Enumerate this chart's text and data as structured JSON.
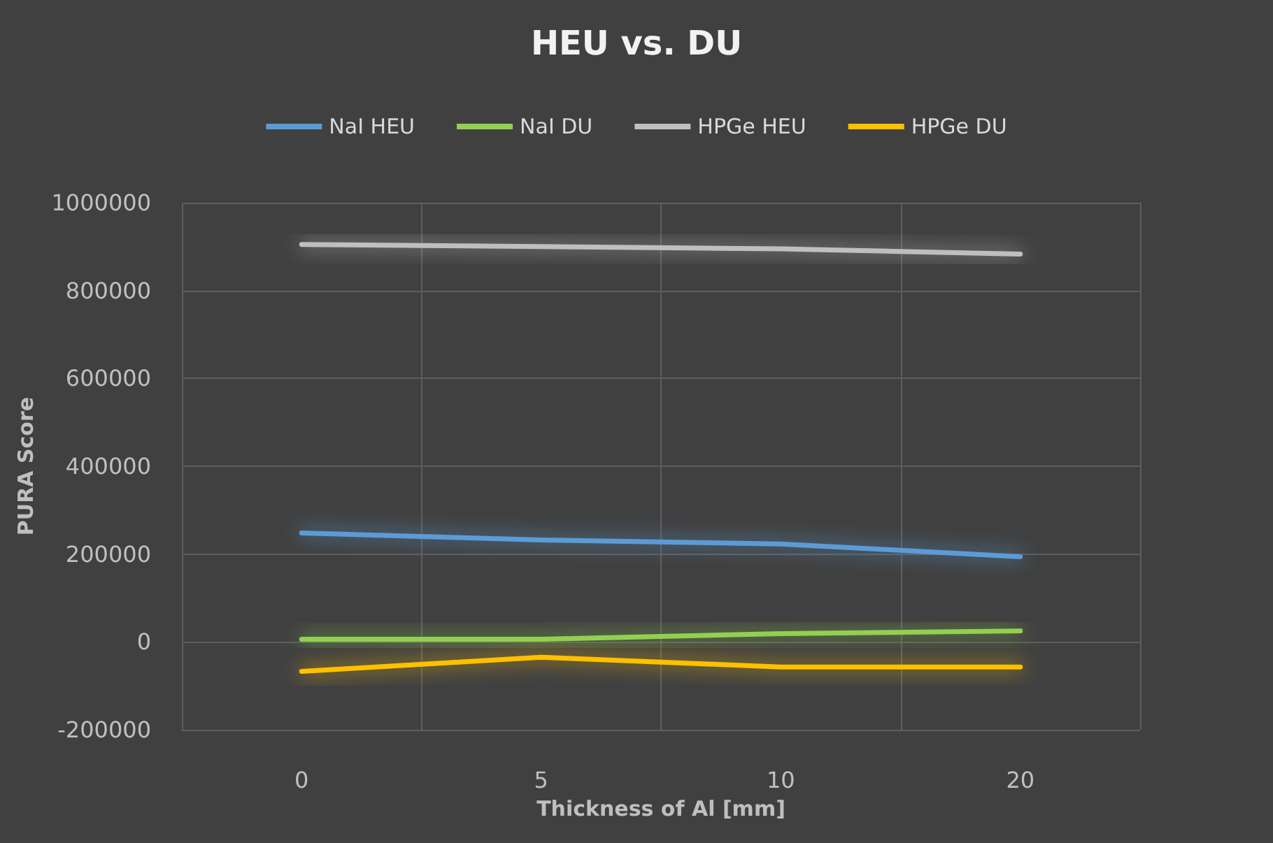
{
  "chart_data": {
    "type": "line",
    "title": "HEU vs. DU",
    "xlabel": "Thickness of Al [mm]",
    "ylabel": "PURA Score",
    "categories": [
      "0",
      "5",
      "10",
      "20"
    ],
    "series": [
      {
        "name": "NaI HEU",
        "color": "#5b9bd5",
        "values": [
          248000,
          232000,
          223000,
          194000
        ]
      },
      {
        "name": "NaI DU",
        "color": "#92d050",
        "values": [
          6000,
          6000,
          19000,
          25000
        ]
      },
      {
        "name": "HPGe HEU",
        "color": "#bfbfbf",
        "values": [
          905000,
          900000,
          895000,
          883000
        ]
      },
      {
        "name": "HPGe DU",
        "color": "#ffc000",
        "values": [
          -67000,
          -35000,
          -57000,
          -57000
        ]
      }
    ],
    "ylim": [
      -200000,
      1000000
    ],
    "yticks": [
      -200000,
      0,
      200000,
      400000,
      600000,
      800000,
      1000000
    ],
    "grid": true,
    "legend": "top",
    "marker": "none",
    "line_style": "solid"
  }
}
